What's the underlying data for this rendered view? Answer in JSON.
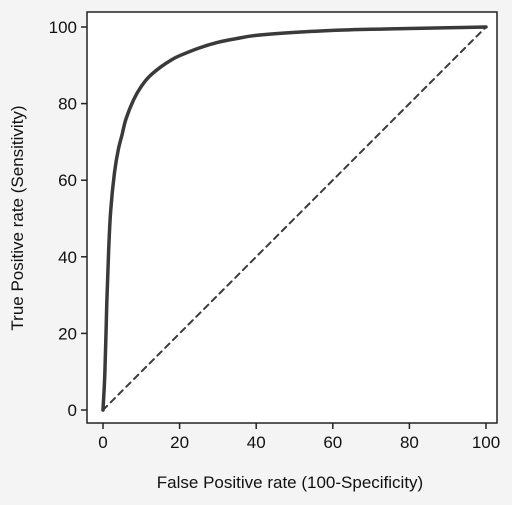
{
  "chart_data": {
    "type": "line",
    "title": "",
    "xlabel": "False Positive rate (100-Specificity)",
    "ylabel": "True Positive rate (Sensitivity)",
    "xlim": [
      0,
      100
    ],
    "ylim": [
      0,
      100
    ],
    "xticks": [
      0,
      20,
      40,
      60,
      80,
      100
    ],
    "yticks": [
      0,
      20,
      40,
      60,
      80,
      100
    ],
    "grid": false,
    "legend": "none",
    "colors": {
      "roc": "#3a3a3a",
      "reference": "#3a3a3a",
      "axes": "#222222",
      "background": "#ffffff"
    },
    "series": [
      {
        "style": "solid",
        "x": [
          0,
          0.5,
          1,
          1.5,
          2,
          3,
          4,
          5,
          6,
          8,
          10,
          12,
          15,
          18,
          20,
          25,
          30,
          35,
          40,
          50,
          60,
          70,
          80,
          90,
          100
        ],
        "y": [
          0,
          10,
          28,
          42,
          52,
          62,
          68,
          72,
          76,
          81,
          84.5,
          87,
          89.5,
          91.5,
          92.5,
          94.5,
          96,
          97,
          97.8,
          98.6,
          99.1,
          99.4,
          99.6,
          99.8,
          100
        ]
      },
      {
        "style": "dashed",
        "x": [
          0,
          100
        ],
        "y": [
          0,
          100
        ]
      }
    ]
  }
}
